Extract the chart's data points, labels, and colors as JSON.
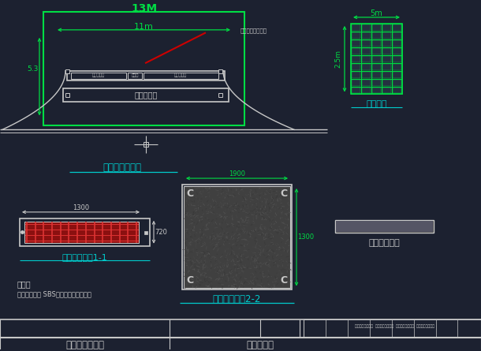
{
  "bg_color": "#1c2130",
  "line_color": "#c8c8c8",
  "green_color": "#00dd44",
  "cyan_color": "#00cccc",
  "red_color": "#cc0000",
  "title_13M": "13M",
  "dim_11m": "11m",
  "dim_5m": "5m",
  "dim_25m": "2.5m",
  "dim_53": "5.3",
  "label_shuiguandao": "水管道保护",
  "label_guanxian": "管线平面布置图",
  "label_yuzhi": "预制场地",
  "label_hntgb1": "混凝土盖板图1-1",
  "label_hntgb2": "混凝土盖板图2-2",
  "label_xujiagun": "需加固的管线",
  "label_note1": "说明：",
  "label_note2": "预制场地铺设 SBS改性历青防水材料。",
  "label_dim_1900": "1900",
  "label_dim_1300": "1300",
  "label_dim_720": "720",
  "label_dim_1300b": "1300",
  "label_bottom_title": "管道保护施工图",
  "label_project": "项目名称：",
  "label_guanxian_top": "管线上方的管道桥",
  "label_rqgd": "燃气管道保",
  "label_gqdz": "管道桥",
  "label_rqgd2": "燃气管道保",
  "note2_text": "预制场地铺设 SBS改性历青防水材料。"
}
